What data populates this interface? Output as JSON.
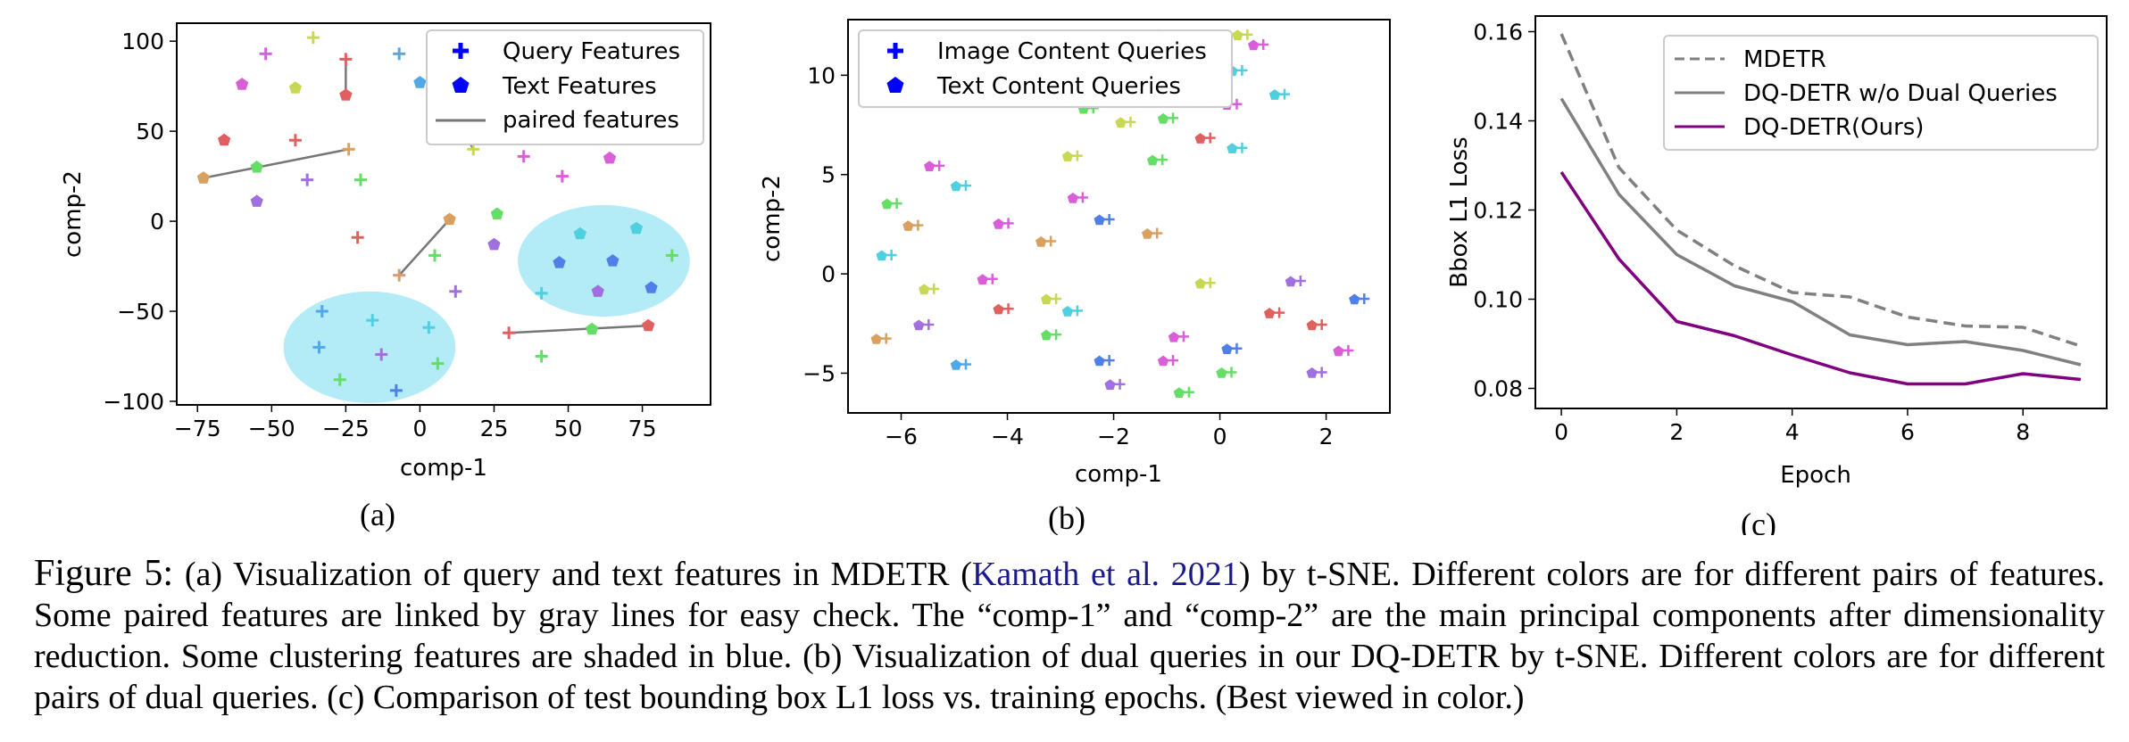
{
  "chart_data": [
    {
      "type": "scatter",
      "panel_label": "(a)",
      "xlabel": "comp-1",
      "ylabel": "comp-2",
      "xlim": [
        -82,
        98
      ],
      "ylim": [
        -102,
        110
      ],
      "xticks": [
        -75,
        -50,
        -25,
        0,
        25,
        50,
        75
      ],
      "yticks": [
        -100,
        -50,
        0,
        50,
        100
      ],
      "legend": {
        "position": "top-right",
        "entries": [
          {
            "label": "Query Features",
            "marker": "plus",
            "color": "#0000ff"
          },
          {
            "label": "Text Features",
            "marker": "pentagon",
            "color": "#0000ff"
          },
          {
            "label": "paired features",
            "marker": "line",
            "color": "#777777"
          }
        ]
      },
      "shaded_clusters": [
        {
          "cx": 62,
          "cy": -22,
          "rx": 29,
          "ry": 31,
          "color": "#b3ecf7"
        },
        {
          "cx": -17,
          "cy": -70,
          "rx": 29,
          "ry": 31,
          "color": "#b3ecf7"
        }
      ],
      "points": [
        {
          "x": -52,
          "y": 93,
          "m": "plus",
          "c": "#d95fd9"
        },
        {
          "x": -36,
          "y": 102,
          "m": "plus",
          "c": "#c8d855"
        },
        {
          "x": -25,
          "y": 90,
          "m": "plus",
          "c": "#e06060"
        },
        {
          "x": -60,
          "y": 76,
          "m": "pent",
          "c": "#d95fd9"
        },
        {
          "x": -42,
          "y": 74,
          "m": "pent",
          "c": "#c8d855"
        },
        {
          "x": -25,
          "y": 70,
          "m": "pent",
          "c": "#e06060"
        },
        {
          "x": -7,
          "y": 93,
          "m": "plus",
          "c": "#4fa8e8"
        },
        {
          "x": 0,
          "y": 77,
          "m": "pent",
          "c": "#4fa8e8"
        },
        {
          "x": -66,
          "y": 45,
          "m": "pent",
          "c": "#e06060"
        },
        {
          "x": -42,
          "y": 45,
          "m": "plus",
          "c": "#e06060"
        },
        {
          "x": -73,
          "y": 24,
          "m": "pent",
          "c": "#d9a060"
        },
        {
          "x": -24,
          "y": 40,
          "m": "plus",
          "c": "#d9a060"
        },
        {
          "x": -55,
          "y": 30,
          "m": "pent",
          "c": "#66dd66"
        },
        {
          "x": -38,
          "y": 23,
          "m": "plus",
          "c": "#a070e0"
        },
        {
          "x": -20,
          "y": 23,
          "m": "plus",
          "c": "#66dd66"
        },
        {
          "x": -55,
          "y": 11,
          "m": "pent",
          "c": "#a070e0"
        },
        {
          "x": -21,
          "y": -9,
          "m": "plus",
          "c": "#e06060"
        },
        {
          "x": 19,
          "y": 88,
          "m": "pent",
          "c": "#f0a0d8"
        },
        {
          "x": 20,
          "y": 64,
          "m": "plus",
          "c": "#c8d855"
        },
        {
          "x": 13,
          "y": 55,
          "m": "pent",
          "c": "#c8d855"
        },
        {
          "x": 18,
          "y": 40,
          "m": "plus",
          "c": "#c8d855"
        },
        {
          "x": 35,
          "y": 36,
          "m": "plus",
          "c": "#d95fd9"
        },
        {
          "x": 52,
          "y": 50,
          "m": "pent",
          "c": "#d95fd9"
        },
        {
          "x": 48,
          "y": 25,
          "m": "plus",
          "c": "#d95fd9"
        },
        {
          "x": 64,
          "y": 35,
          "m": "pent",
          "c": "#d95fd9"
        },
        {
          "x": 10,
          "y": 1,
          "m": "pent",
          "c": "#d9a060"
        },
        {
          "x": -7,
          "y": -30,
          "m": "plus",
          "c": "#d9a060"
        },
        {
          "x": 5,
          "y": -19,
          "m": "plus",
          "c": "#66dd66"
        },
        {
          "x": 26,
          "y": 4,
          "m": "pent",
          "c": "#66dd66"
        },
        {
          "x": 25,
          "y": -13,
          "m": "pent",
          "c": "#a070e0"
        },
        {
          "x": 12,
          "y": -39,
          "m": "plus",
          "c": "#a070e0"
        },
        {
          "x": 54,
          "y": -7,
          "m": "pent",
          "c": "#4fcfdf"
        },
        {
          "x": 73,
          "y": -4,
          "m": "pent",
          "c": "#4fcfdf"
        },
        {
          "x": 85,
          "y": -19,
          "m": "plus",
          "c": "#66dd66"
        },
        {
          "x": 47,
          "y": -23,
          "m": "pent",
          "c": "#4f80e8"
        },
        {
          "x": 65,
          "y": -22,
          "m": "pent",
          "c": "#4f80e8"
        },
        {
          "x": 41,
          "y": -40,
          "m": "plus",
          "c": "#4fcfdf"
        },
        {
          "x": 60,
          "y": -39,
          "m": "pent",
          "c": "#a070e0"
        },
        {
          "x": 78,
          "y": -37,
          "m": "pent",
          "c": "#4f80e8"
        },
        {
          "x": 30,
          "y": -62,
          "m": "plus",
          "c": "#e06060"
        },
        {
          "x": 58,
          "y": -60,
          "m": "pent",
          "c": "#66dd66"
        },
        {
          "x": 77,
          "y": -58,
          "m": "pent",
          "c": "#e06060"
        },
        {
          "x": 41,
          "y": -75,
          "m": "plus",
          "c": "#66dd66"
        },
        {
          "x": -33,
          "y": -50,
          "m": "plus",
          "c": "#4fa8e8"
        },
        {
          "x": -16,
          "y": -55,
          "m": "plus",
          "c": "#4fcfdf"
        },
        {
          "x": 3,
          "y": -59,
          "m": "plus",
          "c": "#4fcfdf"
        },
        {
          "x": -34,
          "y": -70,
          "m": "plus",
          "c": "#4fa8e8"
        },
        {
          "x": -13,
          "y": -74,
          "m": "plus",
          "c": "#a070e0"
        },
        {
          "x": 6,
          "y": -79,
          "m": "plus",
          "c": "#66dd66"
        },
        {
          "x": -27,
          "y": -88,
          "m": "plus",
          "c": "#66dd66"
        },
        {
          "x": -8,
          "y": -94,
          "m": "plus",
          "c": "#4f80e8"
        }
      ],
      "lines": [
        {
          "x1": -25,
          "y1": 90,
          "x2": -25,
          "y2": 70
        },
        {
          "x1": -73,
          "y1": 24,
          "x2": -24,
          "y2": 40
        },
        {
          "x1": 10,
          "y1": 1,
          "x2": -7,
          "y2": -30
        },
        {
          "x1": 18,
          "y1": 40,
          "x2": 13,
          "y2": 55
        },
        {
          "x1": 30,
          "y1": -62,
          "x2": 77,
          "y2": -58
        }
      ]
    },
    {
      "type": "scatter",
      "panel_label": "(b)",
      "xlabel": "comp-1",
      "ylabel": "comp-2",
      "xlim": [
        -7.0,
        3.2
      ],
      "ylim": [
        -7.0,
        12.8
      ],
      "xticks": [
        -6,
        -4,
        -2,
        0,
        2
      ],
      "yticks": [
        -5,
        0,
        5,
        10
      ],
      "legend": {
        "position": "top-left",
        "entries": [
          {
            "label": "Image Content Queries",
            "marker": "plus",
            "color": "#0000ff"
          },
          {
            "label": "Text Content Queries",
            "marker": "pentagon",
            "color": "#0000ff"
          }
        ]
      },
      "pairs": [
        {
          "x": -1.9,
          "y": 11.0,
          "c": "#e06060"
        },
        {
          "x": -1.3,
          "y": 12.0,
          "c": "#c8d855"
        },
        {
          "x": 0.4,
          "y": 12.0,
          "c": "#c8d855"
        },
        {
          "x": 0.7,
          "y": 11.5,
          "c": "#d95fd9"
        },
        {
          "x": 0.3,
          "y": 10.2,
          "c": "#4fcfdf"
        },
        {
          "x": 1.1,
          "y": 9.0,
          "c": "#4fcfdf"
        },
        {
          "x": 0.2,
          "y": 8.5,
          "c": "#d95fd9"
        },
        {
          "x": -2.5,
          "y": 8.3,
          "c": "#66dd66"
        },
        {
          "x": -1.0,
          "y": 7.8,
          "c": "#66dd66"
        },
        {
          "x": -1.8,
          "y": 7.6,
          "c": "#c8d855"
        },
        {
          "x": -0.3,
          "y": 6.8,
          "c": "#e06060"
        },
        {
          "x": 0.3,
          "y": 6.3,
          "c": "#4fcfdf"
        },
        {
          "x": -2.8,
          "y": 5.9,
          "c": "#c8d855"
        },
        {
          "x": -1.2,
          "y": 5.7,
          "c": "#66dd66"
        },
        {
          "x": -5.4,
          "y": 5.4,
          "c": "#d95fd9"
        },
        {
          "x": -4.9,
          "y": 4.4,
          "c": "#4fcfdf"
        },
        {
          "x": -2.7,
          "y": 3.8,
          "c": "#d95fd9"
        },
        {
          "x": -6.2,
          "y": 3.5,
          "c": "#66dd66"
        },
        {
          "x": -4.1,
          "y": 2.5,
          "c": "#d95fd9"
        },
        {
          "x": -2.2,
          "y": 2.7,
          "c": "#4f80e8"
        },
        {
          "x": -5.8,
          "y": 2.4,
          "c": "#d9a060"
        },
        {
          "x": -1.3,
          "y": 2.0,
          "c": "#d9a060"
        },
        {
          "x": -3.3,
          "y": 1.6,
          "c": "#d9a060"
        },
        {
          "x": -6.3,
          "y": 0.9,
          "c": "#4fcfdf"
        },
        {
          "x": -0.3,
          "y": -0.5,
          "c": "#c8d855"
        },
        {
          "x": 1.4,
          "y": -0.4,
          "c": "#a070e0"
        },
        {
          "x": -5.5,
          "y": -0.8,
          "c": "#c8d855"
        },
        {
          "x": -4.4,
          "y": -0.3,
          "c": "#d95fd9"
        },
        {
          "x": -3.2,
          "y": -1.3,
          "c": "#c8d855"
        },
        {
          "x": 2.6,
          "y": -1.3,
          "c": "#4f80e8"
        },
        {
          "x": -4.1,
          "y": -1.8,
          "c": "#e06060"
        },
        {
          "x": -2.8,
          "y": -1.9,
          "c": "#4fcfdf"
        },
        {
          "x": 1.0,
          "y": -2.0,
          "c": "#e06060"
        },
        {
          "x": 1.8,
          "y": -2.6,
          "c": "#e06060"
        },
        {
          "x": -5.6,
          "y": -2.6,
          "c": "#a070e0"
        },
        {
          "x": -3.2,
          "y": -3.1,
          "c": "#66dd66"
        },
        {
          "x": -0.8,
          "y": -3.2,
          "c": "#d95fd9"
        },
        {
          "x": -6.4,
          "y": -3.3,
          "c": "#d9a060"
        },
        {
          "x": 0.2,
          "y": -3.8,
          "c": "#4f80e8"
        },
        {
          "x": 2.3,
          "y": -3.9,
          "c": "#d95fd9"
        },
        {
          "x": -2.2,
          "y": -4.4,
          "c": "#4f80e8"
        },
        {
          "x": -1.0,
          "y": -4.4,
          "c": "#d95fd9"
        },
        {
          "x": -4.9,
          "y": -4.6,
          "c": "#4fa8e8"
        },
        {
          "x": 1.8,
          "y": -5.0,
          "c": "#a070e0"
        },
        {
          "x": 0.1,
          "y": -5.0,
          "c": "#66dd66"
        },
        {
          "x": -2.0,
          "y": -5.6,
          "c": "#a070e0"
        },
        {
          "x": -0.7,
          "y": -6.0,
          "c": "#66dd66"
        }
      ]
    },
    {
      "type": "line",
      "panel_label": "(c)",
      "xlabel": "Epoch",
      "ylabel": "Bbox L1 Loss",
      "xlim": [
        -0.45,
        9.45
      ],
      "ylim": [
        0.0755,
        0.1635
      ],
      "xticks": [
        0,
        2,
        4,
        6,
        8
      ],
      "yticks": [
        "0.08",
        "0.10",
        "0.12",
        "0.14",
        "0.16"
      ],
      "legend": {
        "position": "top-right"
      },
      "x": [
        0,
        1,
        2,
        3,
        4,
        5,
        6,
        7,
        8,
        9
      ],
      "series": [
        {
          "name": "MDETR",
          "style": "dashed",
          "color": "#808080",
          "values": [
            0.1595,
            0.1295,
            0.1155,
            0.1075,
            0.1015,
            0.1005,
            0.096,
            0.094,
            0.0937,
            0.0895
          ]
        },
        {
          "name": "DQ-DETR w/o Dual Queries",
          "style": "solid",
          "color": "#808080",
          "values": [
            0.145,
            0.1235,
            0.11,
            0.103,
            0.0995,
            0.092,
            0.0898,
            0.0905,
            0.0885,
            0.0853
          ]
        },
        {
          "name": "DQ-DETR(Ours)",
          "style": "solid",
          "color": "#800080",
          "values": [
            0.1285,
            0.109,
            0.095,
            0.0918,
            0.0875,
            0.0835,
            0.081,
            0.081,
            0.0833,
            0.082
          ]
        }
      ]
    }
  ],
  "caption": {
    "lead": "Figure 5:",
    "part1": " (a) Visualization of query and text features in MDETR (",
    "citation": "Kamath et al. 2021",
    "part2": ") by t-SNE. Different colors are for different pairs of features. Some paired features are linked by gray lines for easy check. The “comp-1” and “comp-2” are the main principal components after dimensionality reduction. Some clustering features are shaded in blue. (b) Visualization of dual queries in our DQ-DETR by t-SNE. Different colors are for different pairs of dual queries. (c) Comparison of test bounding box L1 loss vs. training epochs. (Best viewed in color.)"
  }
}
